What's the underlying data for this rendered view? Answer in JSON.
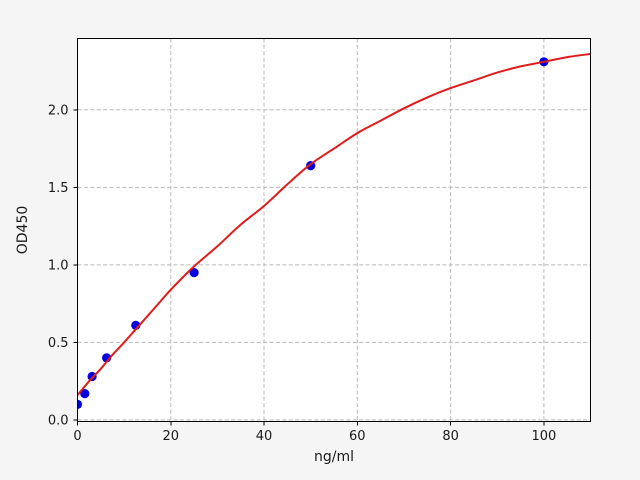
{
  "figure": {
    "background_color": "#f5f5f5",
    "plot_background_color": "#ffffff"
  },
  "chart_data": {
    "type": "scatter",
    "title": "",
    "xlabel": "ng/ml",
    "ylabel": "OD450",
    "xlim": [
      0,
      110
    ],
    "ylim": [
      -0.01,
      2.46
    ],
    "x_tick_labels": [
      "0",
      "20",
      "40",
      "60",
      "80",
      "100"
    ],
    "x_tick_values": [
      0,
      20,
      40,
      60,
      80,
      100
    ],
    "y_tick_labels": [
      "0.0",
      "0.5",
      "1.0",
      "1.5",
      "2.0"
    ],
    "y_tick_values": [
      0,
      0.5,
      1.0,
      1.5,
      2.0
    ],
    "grid": true,
    "grid_color": "#b8b8b8",
    "axis_color": "#000000",
    "text_color": "#1a1a1a",
    "legend": "none",
    "series": [
      {
        "name": "standard-points",
        "type": "scatter",
        "marker": "circle",
        "color": "#0000e0",
        "x": [
          0,
          1.5625,
          3.125,
          6.25,
          12.5,
          25,
          50,
          100
        ],
        "y": [
          0.1,
          0.17,
          0.28,
          0.4,
          0.61,
          0.95,
          1.64,
          2.31
        ]
      },
      {
        "name": "fit-curve",
        "type": "line",
        "color": "#e01b1b",
        "x": [
          0,
          2.5,
          5,
          7.5,
          10,
          12.5,
          15,
          17.5,
          20,
          25,
          30,
          35,
          40,
          45,
          50,
          55,
          60,
          65,
          70,
          75,
          80,
          85,
          90,
          95,
          100,
          105,
          110
        ],
        "y": [
          0.16,
          0.25,
          0.33,
          0.42,
          0.5,
          0.585,
          0.67,
          0.755,
          0.84,
          0.99,
          1.12,
          1.26,
          1.38,
          1.52,
          1.65,
          1.75,
          1.85,
          1.93,
          2.01,
          2.08,
          2.14,
          2.19,
          2.24,
          2.28,
          2.31,
          2.34,
          2.36
        ]
      }
    ]
  }
}
